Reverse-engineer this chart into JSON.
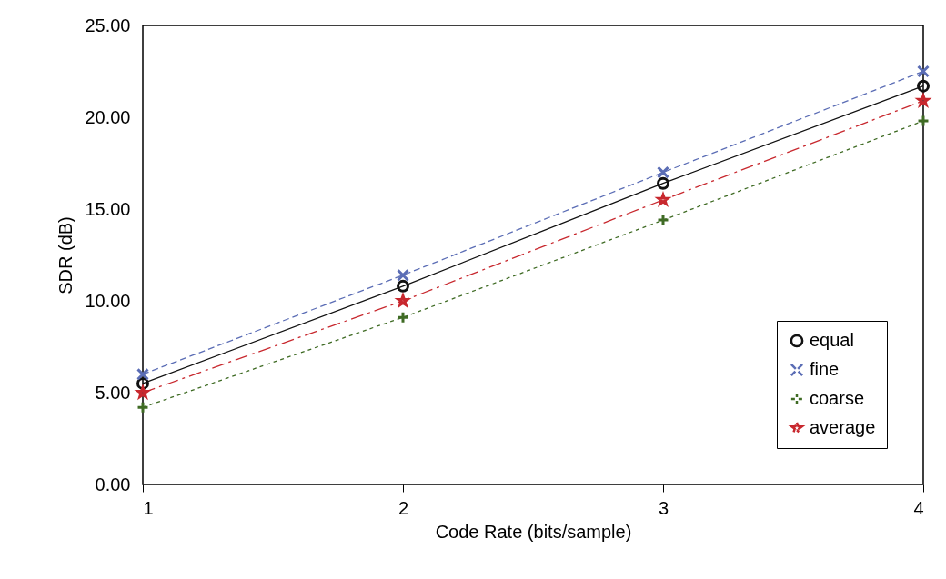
{
  "chart_data": {
    "type": "line",
    "xlabel": "Code Rate (bits/sample)",
    "ylabel": "SDR (dB)",
    "x": [
      1,
      2,
      3,
      4
    ],
    "series": [
      {
        "name": "equal",
        "color": "#111111",
        "values": [
          5.5,
          10.8,
          16.4,
          21.7
        ],
        "marker": "circle",
        "line_style": "solid"
      },
      {
        "name": "fine",
        "color": "#5b6db5",
        "values": [
          6.0,
          11.4,
          17.0,
          22.5
        ],
        "marker": "cross",
        "line_style": "dashed"
      },
      {
        "name": "coarse",
        "color": "#3f6b24",
        "values": [
          4.2,
          9.1,
          14.4,
          19.8
        ],
        "marker": "plus",
        "line_style": "dotted"
      },
      {
        "name": "average",
        "color": "#c8282e",
        "values": [
          5.0,
          10.0,
          15.5,
          20.9
        ],
        "marker": "star",
        "line_style": "dashdot"
      }
    ],
    "xlim": [
      1,
      4
    ],
    "xticks": [
      1,
      2,
      3,
      4
    ],
    "ylim": [
      0,
      25
    ],
    "yticks": [
      {
        "value": 0,
        "label": "0.00"
      },
      {
        "value": 5,
        "label": "5.00"
      },
      {
        "value": 10,
        "label": "10.00"
      },
      {
        "value": 15,
        "label": "15.00"
      },
      {
        "value": 20,
        "label": "20.00"
      },
      {
        "value": 25,
        "label": "25.00"
      }
    ],
    "grid": false,
    "legend": "bottom right"
  }
}
